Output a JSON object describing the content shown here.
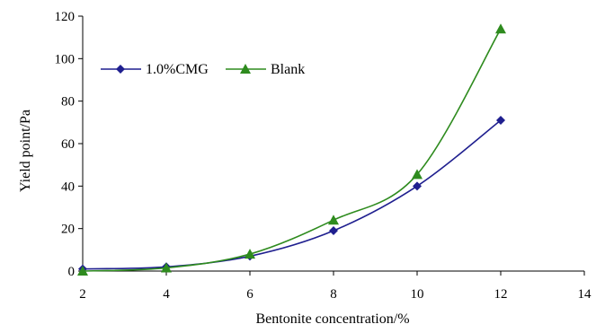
{
  "chart_data": {
    "type": "line",
    "title": "",
    "xlabel": "Bentonite concentration/%",
    "ylabel": "Yield point/Pa",
    "xlim": [
      2,
      14
    ],
    "ylim": [
      0,
      120
    ],
    "xticks": [
      "2",
      "4",
      "6",
      "8",
      "10",
      "12",
      "14"
    ],
    "yticks": [
      "0",
      "20",
      "40",
      "60",
      "80",
      "100",
      "120"
    ],
    "x": [
      2,
      4,
      6,
      8,
      10,
      12
    ],
    "series": [
      {
        "name": "1.0%CMG",
        "values": [
          1,
          2,
          7,
          19,
          40,
          71
        ],
        "color": "#1f1f8f",
        "marker": "diamond"
      },
      {
        "name": "Blank",
        "values": [
          0,
          1.5,
          8,
          24,
          45.5,
          114
        ],
        "color": "#2e8b1e",
        "marker": "triangle"
      }
    ],
    "grid": false,
    "legend_position": "top-left"
  }
}
